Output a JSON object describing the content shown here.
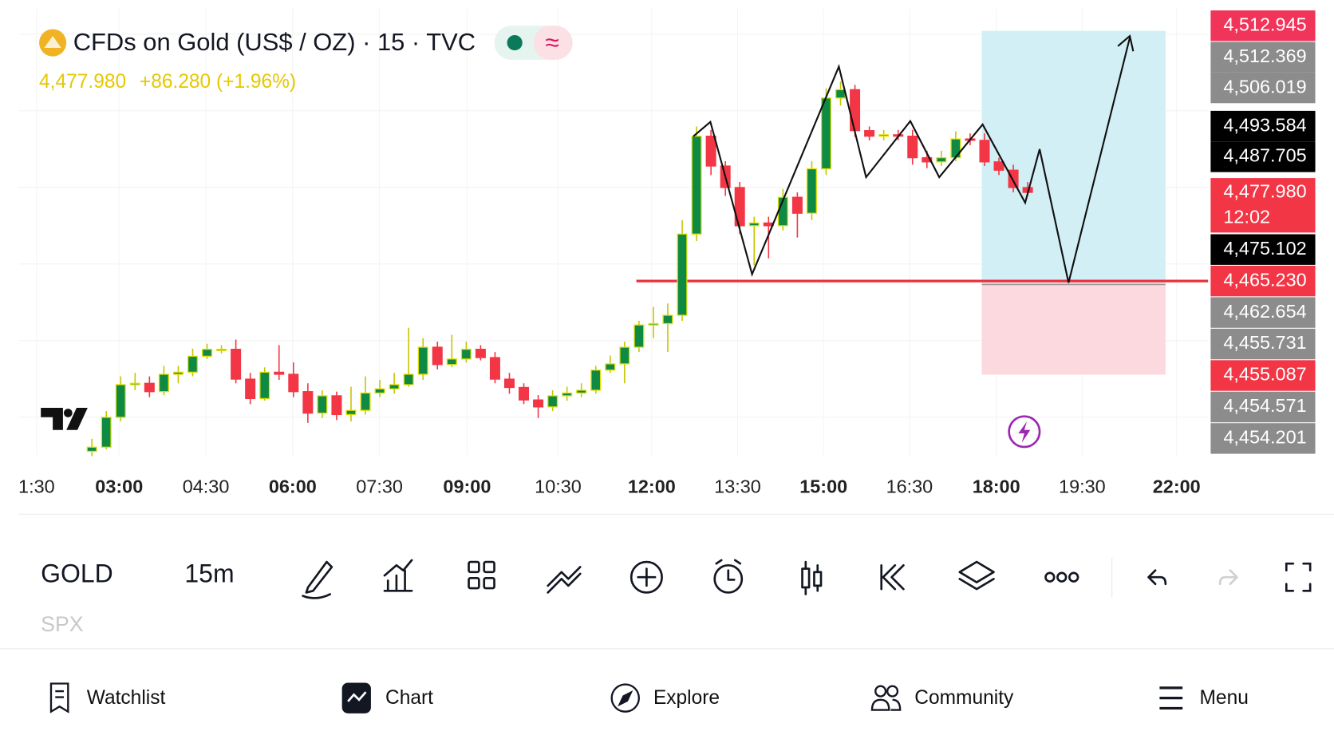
{
  "header": {
    "title": "CFDs on Gold (US$ / OZ) · 15 · TVC",
    "price": "4,477.980",
    "change": "+86.280 (+1.96%)"
  },
  "chart_data": {
    "type": "candlestick",
    "up_color": "#0e8a45",
    "down_color": "#f23645",
    "open": [
      4440.7,
      4441.3,
      4445.6,
      4450.3,
      4450.5,
      4449.3,
      4451.8,
      4452.1,
      4454.4,
      4455.4,
      4455.4,
      4451.1,
      4448.3,
      4452.1,
      4451.8,
      4449.3,
      4446.2,
      4448.7,
      4446.0,
      4446.6,
      4449.1,
      4449.7,
      4450.3,
      4451.8,
      4455.7,
      4453.2,
      4454.0,
      4455.4,
      4454.2,
      4451.1,
      4449.9,
      4448.1,
      4447.1,
      4448.7,
      4449.1,
      4449.5,
      4452.4,
      4453.3,
      4455.7,
      4458.9,
      4459.1,
      4460.3,
      4472.0,
      4486.1,
      4481.8,
      4478.7,
      4473.2,
      4473.6,
      4473.2,
      4477.3,
      4475.0,
      4481.4,
      4491.6,
      4492.8,
      4486.9,
      4486.1,
      4486.3,
      4486.1,
      4483.0,
      4482.4,
      4483.0,
      4485.7,
      4485.5,
      4482.4,
      4481.2,
      4478.7
    ],
    "high": [
      4442.5,
      4446.5,
      4451.5,
      4452.0,
      4451.5,
      4453.0,
      4453.0,
      4455.5,
      4456.2,
      4456.0,
      4456.8,
      4452.0,
      4452.8,
      4456.0,
      4453.5,
      4450.5,
      4449.5,
      4449.3,
      4450.0,
      4451.5,
      4451.0,
      4452.0,
      4458.5,
      4457.0,
      4456.5,
      4457.5,
      4456.5,
      4456.0,
      4455.0,
      4452.0,
      4450.5,
      4448.8,
      4449.5,
      4450.0,
      4450.5,
      4453.0,
      4454.5,
      4456.5,
      4459.5,
      4461.5,
      4462.0,
      4474.0,
      4487.5,
      4487.0,
      4482.5,
      4479.5,
      4474.5,
      4474.5,
      4478.5,
      4478.0,
      4482.5,
      4493.0,
      4494.0,
      4493.5,
      4487.5,
      4487.0,
      4487.0,
      4487.0,
      4484.0,
      4484.0,
      4486.8,
      4486.5,
      4486.5,
      4483.0,
      4482.0,
      4479.5
    ],
    "low": [
      4440.0,
      4441.0,
      4445.0,
      4449.5,
      4448.5,
      4448.8,
      4450.5,
      4451.5,
      4454.0,
      4454.8,
      4450.5,
      4447.5,
      4448.0,
      4451.0,
      4448.5,
      4444.8,
      4445.5,
      4445.2,
      4445.0,
      4446.0,
      4448.5,
      4449.0,
      4450.0,
      4451.0,
      4452.5,
      4452.8,
      4453.5,
      4453.8,
      4450.5,
      4449.0,
      4447.5,
      4445.5,
      4446.5,
      4448.0,
      4448.5,
      4449.0,
      4452.0,
      4450.5,
      4455.0,
      4457.0,
      4455.0,
      4459.5,
      4471.0,
      4480.5,
      4477.5,
      4472.0,
      4467.5,
      4468.5,
      4472.5,
      4471.5,
      4474.0,
      4480.5,
      4490.5,
      4486.0,
      4485.5,
      4485.5,
      4485.5,
      4482.0,
      4481.5,
      4481.8,
      4482.5,
      4484.8,
      4481.8,
      4480.5,
      4478.0,
      4477.5
    ],
    "close": [
      4441.3,
      4445.6,
      4450.3,
      4450.5,
      4449.3,
      4451.8,
      4452.1,
      4454.4,
      4455.4,
      4455.4,
      4451.1,
      4448.3,
      4452.1,
      4451.8,
      4449.3,
      4446.2,
      4448.7,
      4446.0,
      4446.6,
      4449.1,
      4449.7,
      4450.3,
      4451.8,
      4455.7,
      4453.2,
      4454.0,
      4455.4,
      4454.2,
      4451.1,
      4449.9,
      4448.1,
      4447.1,
      4448.7,
      4449.1,
      4449.5,
      4452.4,
      4453.3,
      4455.7,
      4458.9,
      4459.1,
      4460.3,
      4472.0,
      4486.1,
      4481.8,
      4478.7,
      4473.2,
      4473.6,
      4473.2,
      4477.3,
      4475.0,
      4481.4,
      4491.6,
      4492.8,
      4486.9,
      4486.1,
      4486.3,
      4486.1,
      4483.0,
      4482.4,
      4483.0,
      4485.7,
      4485.5,
      4482.4,
      4481.2,
      4478.7,
      4478.0
    ],
    "time_labels": [
      "1:30",
      "03:00",
      "04:30",
      "06:00",
      "07:30",
      "09:00",
      "10:30",
      "12:00",
      "13:30",
      "15:00",
      "16:30",
      "18:00",
      "19:30",
      "22:00"
    ],
    "price_labels": [
      {
        "label": "4,512.945",
        "color": "#f0345a"
      },
      {
        "label": "4,512.369",
        "color": "#8c8c8c"
      },
      {
        "label": "4,506.019",
        "color": "#8c8c8c"
      },
      {
        "label": "4,493.584",
        "color": "#000000"
      },
      {
        "label": "4,487.705",
        "color": "#000000"
      },
      {
        "label": "4,477.980",
        "countdown": "12:02",
        "color": "#f23645"
      },
      {
        "label": "4,475.102",
        "color": "#000000"
      },
      {
        "label": "4,465.230",
        "color": "#f23645"
      },
      {
        "label": "4,462.654",
        "color": "#8c8c8c"
      },
      {
        "label": "4,455.731",
        "color": "#8c8c8c"
      },
      {
        "label": "4,455.087",
        "color": "#f23645"
      },
      {
        "label": "4,454.571",
        "color": "#8c8c8c"
      },
      {
        "label": "4,454.201",
        "color": "#8c8c8c"
      }
    ]
  },
  "toolbar": {
    "symbol": "GOLD",
    "interval": "15m",
    "next_symbol": "SPX"
  },
  "nav": [
    "Watchlist",
    "Chart",
    "Explore",
    "Community",
    "Menu"
  ]
}
